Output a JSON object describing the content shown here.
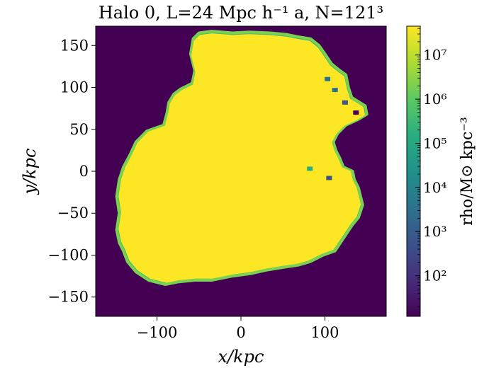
{
  "chart_data": {
    "type": "heatmap",
    "title": "Halo 0, L=24 Mpc h⁻¹ a, N=121³",
    "xlabel": "x/kpc",
    "ylabel": "y/kpc",
    "xlim": [
      -173,
      173
    ],
    "ylim": [
      -173,
      173
    ],
    "x_ticks": [
      {
        "value": -100,
        "label": "−100"
      },
      {
        "value": 0,
        "label": "0"
      },
      {
        "value": 100,
        "label": "100"
      }
    ],
    "y_ticks": [
      {
        "value": -150,
        "label": "−150"
      },
      {
        "value": -100,
        "label": "−100"
      },
      {
        "value": -50,
        "label": "−50"
      },
      {
        "value": 0,
        "label": "0"
      },
      {
        "value": 50,
        "label": "50"
      },
      {
        "value": 100,
        "label": "100"
      },
      {
        "value": 150,
        "label": "150"
      }
    ],
    "colorbar": {
      "label": "rho/M⊙ kpc⁻³",
      "scale": "log",
      "colormap": "viridis",
      "range": [
        12,
        45000000
      ],
      "ticks": [
        {
          "value": 100,
          "label": "10²"
        },
        {
          "value": 1000,
          "label": "10³"
        },
        {
          "value": 10000,
          "label": "10⁴"
        },
        {
          "value": 100000,
          "label": "10⁵"
        },
        {
          "value": 1000000,
          "label": "10⁶"
        },
        {
          "value": 10000000,
          "label": "10⁷"
        }
      ]
    },
    "background_density": 12,
    "halo_density": 45000000,
    "halo_outline": [
      [
        -57,
        158
      ],
      [
        -50,
        165
      ],
      [
        -35,
        167
      ],
      [
        -10,
        165
      ],
      [
        10,
        166
      ],
      [
        35,
        165
      ],
      [
        55,
        163
      ],
      [
        70,
        160
      ],
      [
        83,
        158
      ],
      [
        93,
        150
      ],
      [
        100,
        140
      ],
      [
        108,
        128
      ],
      [
        118,
        120
      ],
      [
        125,
        115
      ],
      [
        128,
        100
      ],
      [
        132,
        88
      ],
      [
        148,
        78
      ],
      [
        150,
        68
      ],
      [
        140,
        62
      ],
      [
        125,
        55
      ],
      [
        115,
        45
      ],
      [
        110,
        35
      ],
      [
        113,
        25
      ],
      [
        118,
        15
      ],
      [
        122,
        5
      ],
      [
        133,
        0
      ],
      [
        135,
        -10
      ],
      [
        140,
        -20
      ],
      [
        145,
        -40
      ],
      [
        140,
        -55
      ],
      [
        132,
        -65
      ],
      [
        122,
        -80
      ],
      [
        112,
        -95
      ],
      [
        98,
        -100
      ],
      [
        82,
        -108
      ],
      [
        68,
        -112
      ],
      [
        48,
        -115
      ],
      [
        30,
        -118
      ],
      [
        12,
        -122
      ],
      [
        -10,
        -125
      ],
      [
        -35,
        -130
      ],
      [
        -55,
        -130
      ],
      [
        -75,
        -132
      ],
      [
        -90,
        -135
      ],
      [
        -110,
        -130
      ],
      [
        -125,
        -120
      ],
      [
        -135,
        -108
      ],
      [
        -140,
        -95
      ],
      [
        -145,
        -85
      ],
      [
        -148,
        -70
      ],
      [
        -145,
        -50
      ],
      [
        -148,
        -30
      ],
      [
        -145,
        -10
      ],
      [
        -140,
        5
      ],
      [
        -132,
        20
      ],
      [
        -125,
        35
      ],
      [
        -112,
        48
      ],
      [
        -92,
        55
      ],
      [
        -88,
        70
      ],
      [
        -86,
        82
      ],
      [
        -80,
        92
      ],
      [
        -72,
        98
      ],
      [
        -58,
        105
      ],
      [
        -55,
        120
      ],
      [
        -60,
        140
      ]
    ],
    "low_density_features": [
      {
        "x": 103,
        "y": 110,
        "value": 5000
      },
      {
        "x": 112,
        "y": 97,
        "value": 2000
      },
      {
        "x": 124,
        "y": 82,
        "value": 800
      },
      {
        "x": 137,
        "y": 70,
        "value": 30
      },
      {
        "x": 82,
        "y": 3,
        "value": 100000
      },
      {
        "x": 105,
        "y": -8,
        "value": 1000
      }
    ]
  }
}
